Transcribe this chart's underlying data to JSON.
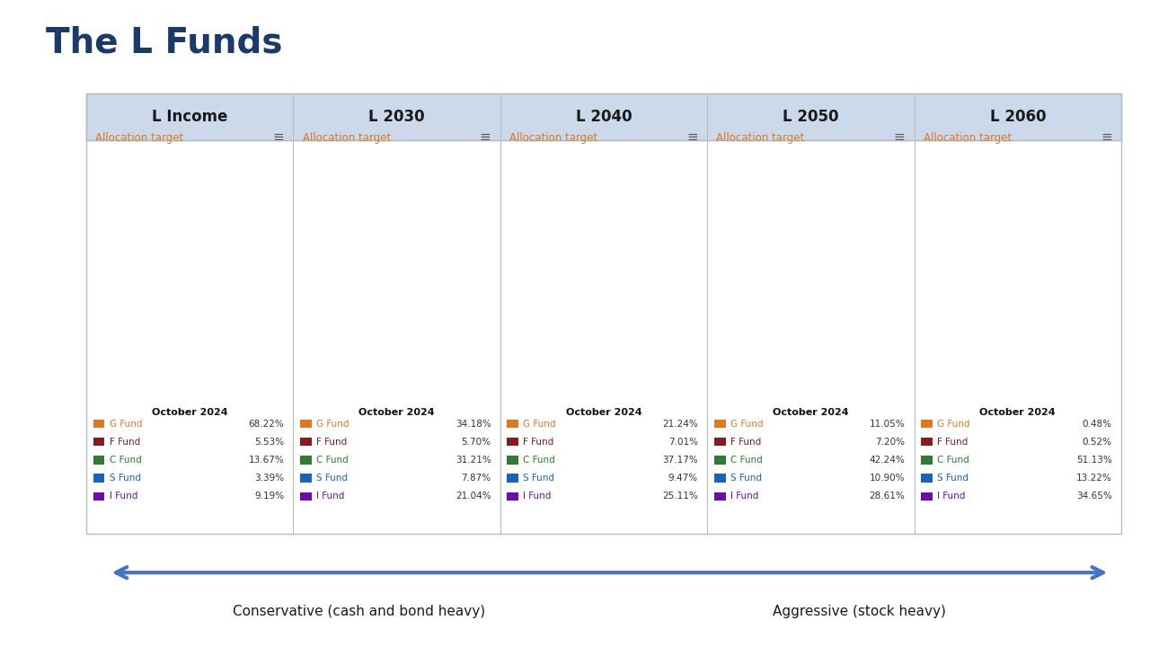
{
  "title": "The L Funds",
  "title_color": "#1a3a6b",
  "background_color": "#ffffff",
  "header_bg": "#ccd9ea",
  "funds": [
    "L Income",
    "L 2030",
    "L 2040",
    "L 2050",
    "L 2060"
  ],
  "allocation_label": "Allocation target",
  "date_label": "October 2024",
  "fund_colors": {
    "G Fund": "#E07820",
    "F Fund": "#8B1A1A",
    "C Fund": "#2E7D32",
    "S Fund": "#1565C0",
    "I Fund": "#6A0DAD"
  },
  "fund_labels": [
    "G Fund",
    "F Fund",
    "C Fund",
    "S Fund",
    "I Fund"
  ],
  "data": [
    {
      "name": "L Income",
      "values": [
        68.22,
        5.53,
        13.67,
        3.39,
        9.19
      ]
    },
    {
      "name": "L 2030",
      "values": [
        34.18,
        5.7,
        31.21,
        7.87,
        21.04
      ]
    },
    {
      "name": "L 2040",
      "values": [
        21.24,
        7.01,
        37.17,
        9.47,
        25.11
      ]
    },
    {
      "name": "L 2050",
      "values": [
        11.05,
        7.2,
        42.24,
        10.9,
        28.61
      ]
    },
    {
      "name": "L 2060",
      "values": [
        0.48,
        0.52,
        51.13,
        13.22,
        34.65
      ]
    }
  ],
  "conservative_label": "Conservative (cash and bond heavy)",
  "aggressive_label": "Aggressive (stock heavy)",
  "arrow_color": "#4472C4",
  "alloc_color": "#E07820"
}
